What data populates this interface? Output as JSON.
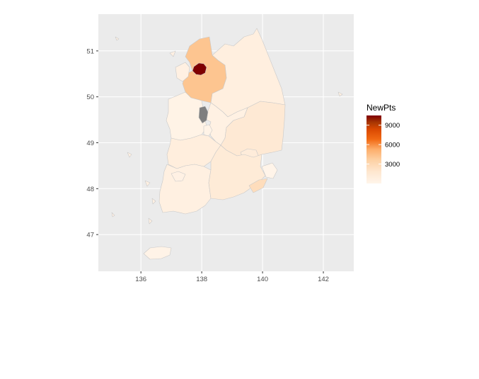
{
  "colors": {
    "panel_background": "#ebebeb",
    "grid_major": "#ffffff",
    "na_fill": "#7f7f7f",
    "scale_low": "#fff5eb",
    "scale_mid": "#fdae6b",
    "scale_high": "#7f0000"
  },
  "map": {
    "type": "choropleth",
    "x_ticks": [
      "136",
      "138",
      "140",
      "142"
    ],
    "y_ticks": [
      "47",
      "48",
      "49",
      "50",
      "51"
    ],
    "xlim": [
      134.6,
      143
    ],
    "ylim": [
      46.2,
      51.8
    ]
  },
  "legend": {
    "title": "NewPts",
    "breaks": [
      "9000",
      "6000",
      "3000"
    ],
    "range": [
      0,
      10500
    ]
  },
  "regions": [
    {
      "id": "gangwon",
      "value": 800
    },
    {
      "id": "gyeonggi",
      "value": 4200
    },
    {
      "id": "seoul",
      "value": 10500
    },
    {
      "id": "incheon",
      "value": 600
    },
    {
      "id": "chungbuk",
      "value": 500
    },
    {
      "id": "chungnam",
      "value": 300
    },
    {
      "id": "sejong",
      "value": null
    },
    {
      "id": "daejeon",
      "value": 250
    },
    {
      "id": "gyeongbuk",
      "value": 1500
    },
    {
      "id": "daegu",
      "value": 1100
    },
    {
      "id": "jeonbuk",
      "value": 900
    },
    {
      "id": "jeonnam",
      "value": 650
    },
    {
      "id": "gwangju",
      "value": 450
    },
    {
      "id": "gyeongnam",
      "value": 1300
    },
    {
      "id": "ulsan",
      "value": 150
    },
    {
      "id": "busan",
      "value": 2600
    },
    {
      "id": "jeju",
      "value": 250
    }
  ]
}
